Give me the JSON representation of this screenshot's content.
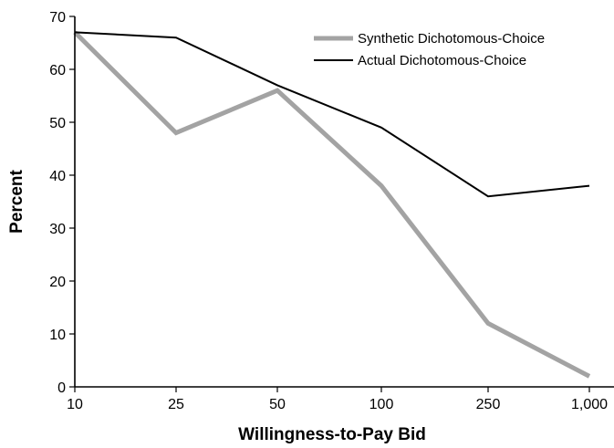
{
  "chart_data": {
    "type": "line",
    "categories": [
      "10",
      "25",
      "50",
      "100",
      "250",
      "1,000"
    ],
    "xlabel": "Willingness-to-Pay Bid",
    "ylabel": "Percent",
    "ylim": [
      0,
      70
    ],
    "yticks": [
      0,
      10,
      20,
      30,
      40,
      50,
      60,
      70
    ],
    "grid": false,
    "legend_position": "top-right",
    "series": [
      {
        "name": "Synthetic Dichotomous-Choice",
        "values": [
          67,
          48,
          56,
          38,
          12,
          2
        ],
        "color": "#a3a3a3",
        "style": "thick"
      },
      {
        "name": "Actual Dichotomous-Choice",
        "values": [
          67,
          66,
          57,
          49,
          36,
          38
        ],
        "color": "#000000",
        "style": "thin"
      }
    ]
  }
}
